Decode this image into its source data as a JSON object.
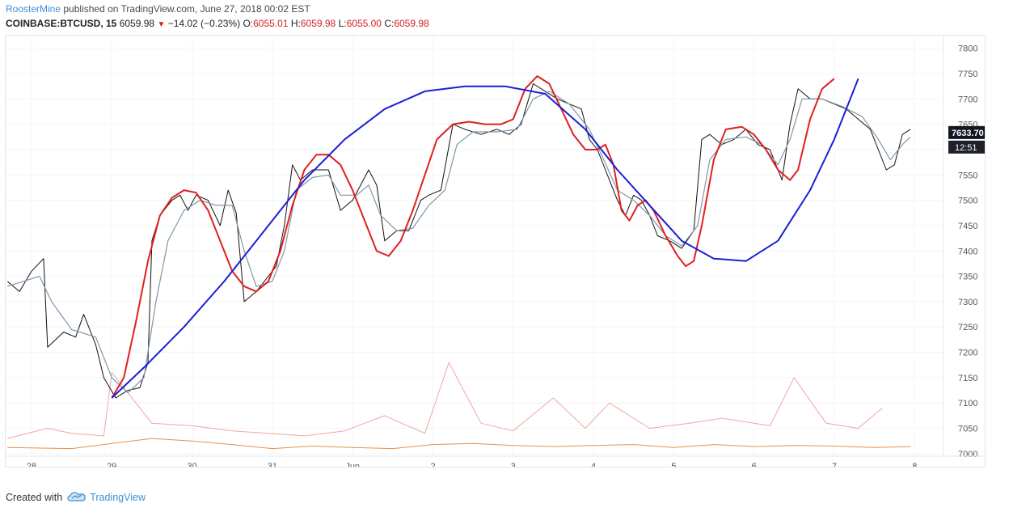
{
  "header": {
    "author": "RoosterMine",
    "published_text": "published on TradingView.com, June 27, 2018 00:02 EST",
    "symbol": "COINBASE:BTCUSD, 15",
    "last": "6059.98",
    "change": "−14.02 (−0.23%)",
    "o_label": "O:",
    "o_value": "6055.01",
    "h_label": "H:",
    "h_value": "6059.98",
    "l_label": "L:",
    "l_value": "6055.00",
    "c_label": "C:",
    "c_value": "6059.98"
  },
  "footer": {
    "created_with": "Created with",
    "brand": "TradingView",
    "logo_icon": "tradingview-cloud-icon"
  },
  "chart_data": {
    "type": "line",
    "y_ticks": [
      7000,
      7050,
      7100,
      7150,
      7200,
      7250,
      7300,
      7350,
      7400,
      7450,
      7500,
      7550,
      7600,
      7650,
      7700,
      7750,
      7800
    ],
    "y_range": [
      6995,
      7825
    ],
    "x_range_days": [
      -0.3,
      8.8
    ],
    "x_tick_labels": [
      {
        "d": 0,
        "label": "28"
      },
      {
        "d": 1,
        "label": "29"
      },
      {
        "d": 2,
        "label": "30"
      },
      {
        "d": 3,
        "label": "31"
      },
      {
        "d": 4,
        "label": "Jun"
      },
      {
        "d": 5,
        "label": "2"
      },
      {
        "d": 6,
        "label": "3"
      },
      {
        "d": 7,
        "label": "4"
      },
      {
        "d": 8,
        "label": "5"
      },
      {
        "d": 9,
        "label": "6"
      },
      {
        "d": 10,
        "label": "7"
      },
      {
        "d": 11,
        "label": "8"
      }
    ],
    "x_label_positions_note": "",
    "price_points": [
      [
        -0.3,
        7340
      ],
      [
        -0.15,
        7320
      ],
      [
        0.0,
        7360
      ],
      [
        0.15,
        7385
      ],
      [
        0.2,
        7210
      ],
      [
        0.4,
        7240
      ],
      [
        0.55,
        7230
      ],
      [
        0.65,
        7275
      ],
      [
        0.8,
        7215
      ],
      [
        0.9,
        7150
      ],
      [
        1.05,
        7110
      ],
      [
        1.2,
        7125
      ],
      [
        1.35,
        7130
      ],
      [
        1.45,
        7180
      ],
      [
        1.5,
        7420
      ],
      [
        1.6,
        7470
      ],
      [
        1.75,
        7500
      ],
      [
        1.85,
        7510
      ],
      [
        1.95,
        7480
      ],
      [
        2.05,
        7510
      ],
      [
        2.2,
        7500
      ],
      [
        2.35,
        7450
      ],
      [
        2.45,
        7520
      ],
      [
        2.55,
        7475
      ],
      [
        2.65,
        7300
      ],
      [
        2.8,
        7320
      ],
      [
        2.95,
        7350
      ],
      [
        3.05,
        7370
      ],
      [
        3.15,
        7450
      ],
      [
        3.25,
        7570
      ],
      [
        3.35,
        7540
      ],
      [
        3.5,
        7560
      ],
      [
        3.7,
        7560
      ],
      [
        3.85,
        7480
      ],
      [
        4.0,
        7500
      ],
      [
        4.2,
        7560
      ],
      [
        4.3,
        7530
      ],
      [
        4.4,
        7420
      ],
      [
        4.55,
        7440
      ],
      [
        4.7,
        7440
      ],
      [
        4.85,
        7500
      ],
      [
        4.95,
        7510
      ],
      [
        5.1,
        7520
      ],
      [
        5.25,
        7650
      ],
      [
        5.4,
        7640
      ],
      [
        5.6,
        7630
      ],
      [
        5.8,
        7640
      ],
      [
        5.95,
        7630
      ],
      [
        6.1,
        7650
      ],
      [
        6.25,
        7730
      ],
      [
        6.4,
        7715
      ],
      [
        6.55,
        7700
      ],
      [
        6.7,
        7690
      ],
      [
        6.85,
        7680
      ],
      [
        6.95,
        7620
      ],
      [
        7.05,
        7600
      ],
      [
        7.15,
        7560
      ],
      [
        7.3,
        7500
      ],
      [
        7.4,
        7470
      ],
      [
        7.5,
        7510
      ],
      [
        7.6,
        7500
      ],
      [
        7.7,
        7470
      ],
      [
        7.8,
        7430
      ],
      [
        7.95,
        7420
      ],
      [
        8.1,
        7405
      ],
      [
        8.25,
        7440
      ],
      [
        8.35,
        7620
      ],
      [
        8.45,
        7630
      ],
      [
        8.6,
        7610
      ],
      [
        8.75,
        7620
      ],
      [
        8.9,
        7640
      ],
      [
        9.05,
        7610
      ],
      [
        9.2,
        7600
      ],
      [
        9.35,
        7540
      ],
      [
        9.45,
        7650
      ],
      [
        9.55,
        7720
      ],
      [
        9.7,
        7700
      ],
      [
        9.85,
        7700
      ],
      [
        10.0,
        7690
      ],
      [
        10.15,
        7680
      ],
      [
        10.3,
        7660
      ],
      [
        10.45,
        7640
      ],
      [
        10.55,
        7600
      ],
      [
        10.65,
        7560
      ],
      [
        10.75,
        7570
      ],
      [
        10.85,
        7630
      ],
      [
        10.95,
        7640
      ]
    ],
    "volume_points": [
      [
        -0.3,
        7030
      ],
      [
        0.2,
        7050
      ],
      [
        0.5,
        7040
      ],
      [
        0.9,
        7035
      ],
      [
        1.0,
        7160
      ],
      [
        1.5,
        7060
      ],
      [
        2.0,
        7055
      ],
      [
        2.5,
        7045
      ],
      [
        2.95,
        7040
      ],
      [
        3.4,
        7035
      ],
      [
        3.9,
        7045
      ],
      [
        4.4,
        7075
      ],
      [
        4.9,
        7040
      ],
      [
        5.2,
        7180
      ],
      [
        5.6,
        7060
      ],
      [
        6.0,
        7045
      ],
      [
        6.5,
        7110
      ],
      [
        6.9,
        7050
      ],
      [
        7.2,
        7100
      ],
      [
        7.7,
        7050
      ],
      [
        8.2,
        7060
      ],
      [
        8.6,
        7070
      ],
      [
        9.2,
        7055
      ],
      [
        9.5,
        7150
      ],
      [
        9.9,
        7060
      ],
      [
        10.3,
        7050
      ],
      [
        10.6,
        7090
      ]
    ],
    "volume_ma_points": [
      [
        -0.3,
        7012
      ],
      [
        0.5,
        7010
      ],
      [
        1.0,
        7020
      ],
      [
        1.5,
        7030
      ],
      [
        2.0,
        7025
      ],
      [
        2.5,
        7018
      ],
      [
        3.0,
        7010
      ],
      [
        3.5,
        7015
      ],
      [
        4.0,
        7012
      ],
      [
        4.5,
        7010
      ],
      [
        5.0,
        7018
      ],
      [
        5.5,
        7020
      ],
      [
        6.0,
        7016
      ],
      [
        6.5,
        7014
      ],
      [
        7.0,
        7016
      ],
      [
        7.5,
        7018
      ],
      [
        8.0,
        7012
      ],
      [
        8.5,
        7018
      ],
      [
        9.0,
        7014
      ],
      [
        9.5,
        7016
      ],
      [
        10.0,
        7015
      ],
      [
        10.5,
        7012
      ],
      [
        10.95,
        7014
      ]
    ],
    "series": [
      {
        "color": "#7e97ab",
        "points": [
          [
            -0.3,
            7330
          ],
          [
            0.1,
            7350
          ],
          [
            0.25,
            7300
          ],
          [
            0.5,
            7245
          ],
          [
            0.8,
            7230
          ],
          [
            1.0,
            7150
          ],
          [
            1.2,
            7120
          ],
          [
            1.4,
            7150
          ],
          [
            1.55,
            7300
          ],
          [
            1.7,
            7420
          ],
          [
            1.9,
            7480
          ],
          [
            2.1,
            7500
          ],
          [
            2.3,
            7490
          ],
          [
            2.5,
            7490
          ],
          [
            2.65,
            7400
          ],
          [
            2.8,
            7330
          ],
          [
            3.0,
            7340
          ],
          [
            3.15,
            7400
          ],
          [
            3.3,
            7520
          ],
          [
            3.5,
            7545
          ],
          [
            3.7,
            7550
          ],
          [
            3.85,
            7510
          ],
          [
            4.05,
            7510
          ],
          [
            4.2,
            7530
          ],
          [
            4.35,
            7470
          ],
          [
            4.55,
            7440
          ],
          [
            4.75,
            7445
          ],
          [
            4.95,
            7490
          ],
          [
            5.15,
            7520
          ],
          [
            5.3,
            7610
          ],
          [
            5.5,
            7635
          ],
          [
            5.8,
            7635
          ],
          [
            6.05,
            7640
          ],
          [
            6.25,
            7700
          ],
          [
            6.45,
            7715
          ],
          [
            6.7,
            7690
          ],
          [
            6.95,
            7640
          ],
          [
            7.1,
            7590
          ],
          [
            7.3,
            7520
          ],
          [
            7.5,
            7500
          ],
          [
            7.7,
            7470
          ],
          [
            7.9,
            7430
          ],
          [
            8.1,
            7410
          ],
          [
            8.3,
            7450
          ],
          [
            8.45,
            7580
          ],
          [
            8.65,
            7620
          ],
          [
            8.9,
            7625
          ],
          [
            9.1,
            7610
          ],
          [
            9.3,
            7570
          ],
          [
            9.45,
            7620
          ],
          [
            9.6,
            7700
          ],
          [
            9.85,
            7700
          ],
          [
            10.1,
            7685
          ],
          [
            10.35,
            7665
          ],
          [
            10.55,
            7620
          ],
          [
            10.7,
            7580
          ],
          [
            10.85,
            7610
          ],
          [
            10.95,
            7625
          ]
        ]
      },
      {
        "color": "#e02020",
        "points": [
          [
            1.0,
            7110
          ],
          [
            1.15,
            7150
          ],
          [
            1.3,
            7260
          ],
          [
            1.45,
            7380
          ],
          [
            1.6,
            7470
          ],
          [
            1.75,
            7505
          ],
          [
            1.9,
            7520
          ],
          [
            2.05,
            7515
          ],
          [
            2.2,
            7480
          ],
          [
            2.35,
            7420
          ],
          [
            2.5,
            7360
          ],
          [
            2.65,
            7330
          ],
          [
            2.8,
            7320
          ],
          [
            2.95,
            7340
          ],
          [
            3.1,
            7400
          ],
          [
            3.25,
            7490
          ],
          [
            3.4,
            7560
          ],
          [
            3.55,
            7590
          ],
          [
            3.7,
            7590
          ],
          [
            3.85,
            7570
          ],
          [
            4.0,
            7520
          ],
          [
            4.15,
            7460
          ],
          [
            4.3,
            7400
          ],
          [
            4.45,
            7390
          ],
          [
            4.6,
            7420
          ],
          [
            4.75,
            7480
          ],
          [
            4.9,
            7550
          ],
          [
            5.05,
            7620
          ],
          [
            5.25,
            7650
          ],
          [
            5.45,
            7655
          ],
          [
            5.65,
            7650
          ],
          [
            5.85,
            7650
          ],
          [
            6.0,
            7660
          ],
          [
            6.15,
            7720
          ],
          [
            6.3,
            7745
          ],
          [
            6.45,
            7730
          ],
          [
            6.6,
            7680
          ],
          [
            6.75,
            7630
          ],
          [
            6.9,
            7600
          ],
          [
            7.05,
            7600
          ],
          [
            7.15,
            7610
          ],
          [
            7.25,
            7570
          ],
          [
            7.35,
            7480
          ],
          [
            7.45,
            7460
          ],
          [
            7.55,
            7490
          ],
          [
            7.65,
            7500
          ],
          [
            7.75,
            7480
          ],
          [
            7.9,
            7430
          ],
          [
            8.05,
            7390
          ],
          [
            8.15,
            7370
          ],
          [
            8.25,
            7380
          ],
          [
            8.35,
            7450
          ],
          [
            8.5,
            7580
          ],
          [
            8.65,
            7640
          ],
          [
            8.85,
            7645
          ],
          [
            9.0,
            7630
          ],
          [
            9.15,
            7600
          ],
          [
            9.3,
            7560
          ],
          [
            9.45,
            7540
          ],
          [
            9.55,
            7560
          ],
          [
            9.7,
            7660
          ],
          [
            9.85,
            7720
          ],
          [
            10.0,
            7740
          ]
        ]
      },
      {
        "color": "#1a1fd6",
        "points": [
          [
            1.0,
            7110
          ],
          [
            1.4,
            7170
          ],
          [
            1.9,
            7250
          ],
          [
            2.4,
            7340
          ],
          [
            2.9,
            7440
          ],
          [
            3.4,
            7540
          ],
          [
            3.9,
            7620
          ],
          [
            4.4,
            7680
          ],
          [
            4.9,
            7715
          ],
          [
            5.4,
            7725
          ],
          [
            5.9,
            7725
          ],
          [
            6.4,
            7710
          ],
          [
            6.9,
            7640
          ],
          [
            7.3,
            7560
          ],
          [
            7.7,
            7490
          ],
          [
            8.1,
            7420
          ],
          [
            8.5,
            7385
          ],
          [
            8.9,
            7380
          ],
          [
            9.3,
            7420
          ],
          [
            9.7,
            7520
          ],
          [
            10.0,
            7620
          ],
          [
            10.3,
            7740
          ]
        ]
      }
    ],
    "last_price_label": "7633.70",
    "countdown_label": "12:51",
    "price_label_color": "#131722"
  }
}
